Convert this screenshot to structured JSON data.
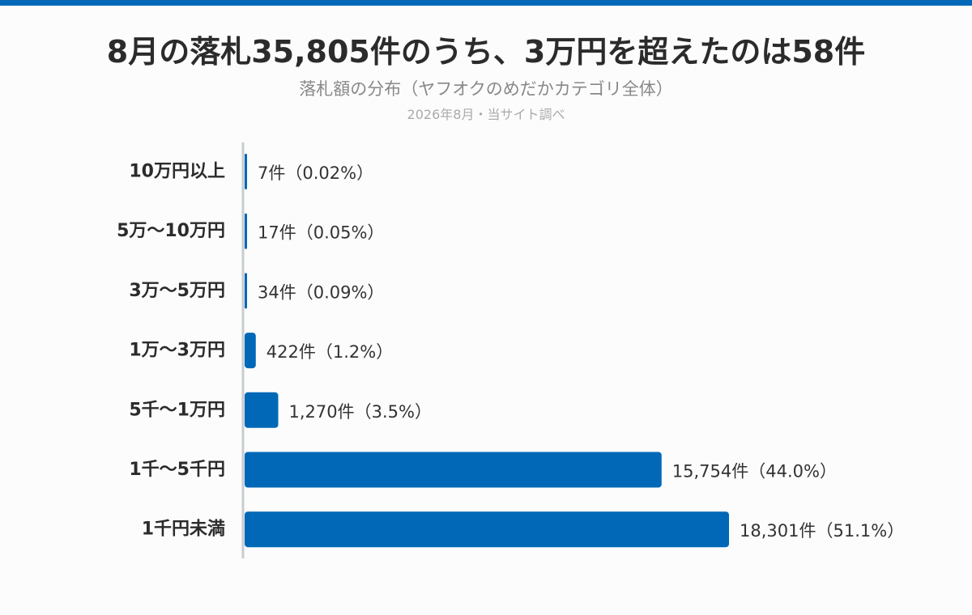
{
  "colors": {
    "accent": "#0068b7",
    "axis": "#c8ccd0",
    "background": "#fcfcfc"
  },
  "header": {
    "title": "8月の落札35,805件のうち、3万円を超えたのは58件",
    "subtitle": "落札額の分布（ヤフオクのめだかカテゴリ全体）",
    "source": "2026年8月・当サイト調べ"
  },
  "chart_data": {
    "type": "bar",
    "orientation": "horizontal",
    "title": "8月の落札35,805件のうち、3万円を超えたのは58件",
    "subtitle": "落札額の分布（ヤフオクのめだかカテゴリ全体）",
    "xlabel": "",
    "ylabel": "",
    "grid": false,
    "legend": "none",
    "categories": [
      "10万円以上",
      "5万〜10万円",
      "3万〜5万円",
      "1万〜3万円",
      "5千〜1万円",
      "1千〜5千円",
      "1千円未満"
    ],
    "values": [
      7,
      17,
      34,
      422,
      1270,
      15754,
      18301
    ],
    "labels": [
      "7件（0.02%）",
      "17件（0.05%）",
      "34件（0.09%）",
      "422件（1.2%）",
      "1,270件（3.5%）",
      "15,754件（44.0%）",
      "18,301件（51.1%）"
    ],
    "xlim": [
      0,
      18301
    ]
  }
}
